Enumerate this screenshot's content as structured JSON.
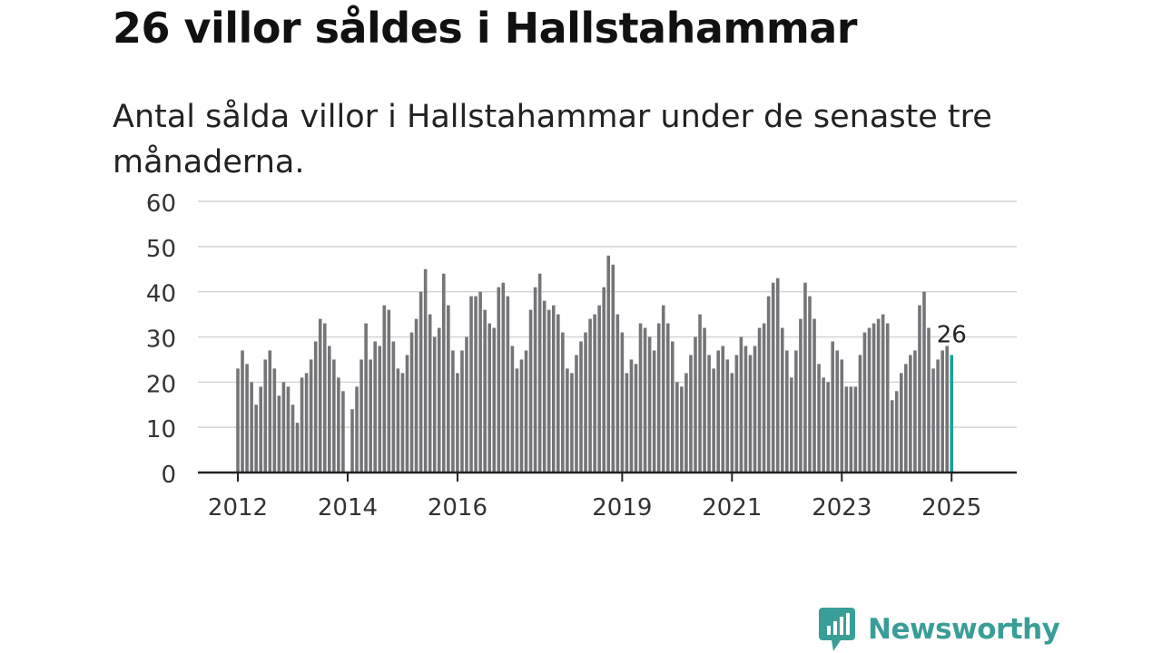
{
  "chart_data": {
    "type": "bar",
    "title": "26 villor såldes i Hallstahammar",
    "subtitle": "Antal sålda villor i Hallstahammar under de senaste tre månaderna.",
    "ylim": [
      0,
      60
    ],
    "yticks": [
      0,
      10,
      20,
      30,
      40,
      50,
      60
    ],
    "grid": true,
    "x_start": "2012-01",
    "xtick_labels": [
      "2012",
      "2014",
      "2016",
      "2019",
      "2021",
      "2023",
      "2025"
    ],
    "values": [
      23,
      27,
      24,
      20,
      15,
      19,
      25,
      27,
      23,
      17,
      20,
      19,
      15,
      11,
      21,
      22,
      25,
      29,
      34,
      33,
      28,
      25,
      21,
      18,
      null,
      14,
      19,
      25,
      33,
      25,
      29,
      28,
      37,
      36,
      29,
      23,
      22,
      26,
      31,
      34,
      40,
      45,
      35,
      30,
      32,
      44,
      37,
      27,
      22,
      27,
      30,
      39,
      39,
      40,
      36,
      33,
      32,
      41,
      42,
      39,
      28,
      23,
      25,
      27,
      36,
      41,
      44,
      38,
      36,
      37,
      35,
      31,
      23,
      22,
      26,
      29,
      31,
      34,
      35,
      37,
      41,
      48,
      46,
      35,
      31,
      22,
      25,
      24,
      33,
      32,
      30,
      27,
      33,
      37,
      33,
      29,
      20,
      19,
      22,
      26,
      30,
      35,
      32,
      26,
      23,
      27,
      28,
      25,
      22,
      26,
      30,
      28,
      26,
      28,
      32,
      33,
      39,
      42,
      43,
      32,
      27,
      21,
      27,
      34,
      42,
      39,
      34,
      24,
      21,
      20,
      29,
      27,
      25,
      19,
      19,
      19,
      26,
      31,
      32,
      33,
      34,
      35,
      33,
      16,
      18,
      22,
      24,
      26,
      27,
      37,
      40,
      32,
      23,
      25,
      27,
      28,
      26
    ],
    "last_value_label": "26",
    "bar_color": "#757478",
    "highlight_color": "#17a09a"
  },
  "brand": {
    "name": "Newsworthy",
    "color": "#3a9e98"
  }
}
